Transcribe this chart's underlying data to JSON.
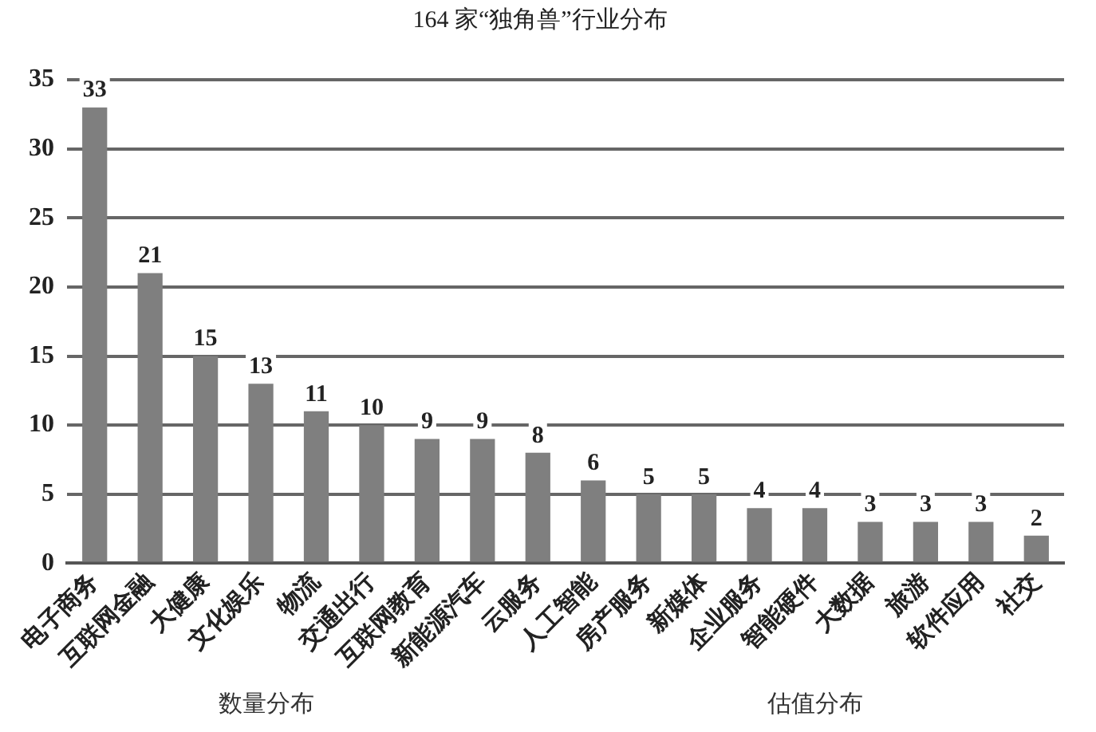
{
  "chart_data": {
    "type": "bar",
    "title": "164 家“独角兽”行业分布",
    "categories": [
      "电子商务",
      "互联网金融",
      "大健康",
      "文化娱乐",
      "物流",
      "交通出行",
      "互联网教育",
      "新能源汽车",
      "云服务",
      "人工智能",
      "房产服务",
      "新媒体",
      "企业服务",
      "智能硬件",
      "大数据",
      "旅游",
      "软件应用",
      "社交"
    ],
    "values": [
      33,
      21,
      15,
      13,
      11,
      10,
      9,
      9,
      8,
      6,
      5,
      5,
      4,
      4,
      3,
      3,
      3,
      2
    ],
    "color": "#7f7f7f",
    "ylim": [
      0,
      35
    ],
    "yticks": [
      0,
      5,
      10,
      15,
      20,
      25,
      30,
      35
    ],
    "grid": "y",
    "legend": false,
    "data_labels": true,
    "annotations": [
      "数量分布",
      "估值分布"
    ]
  }
}
